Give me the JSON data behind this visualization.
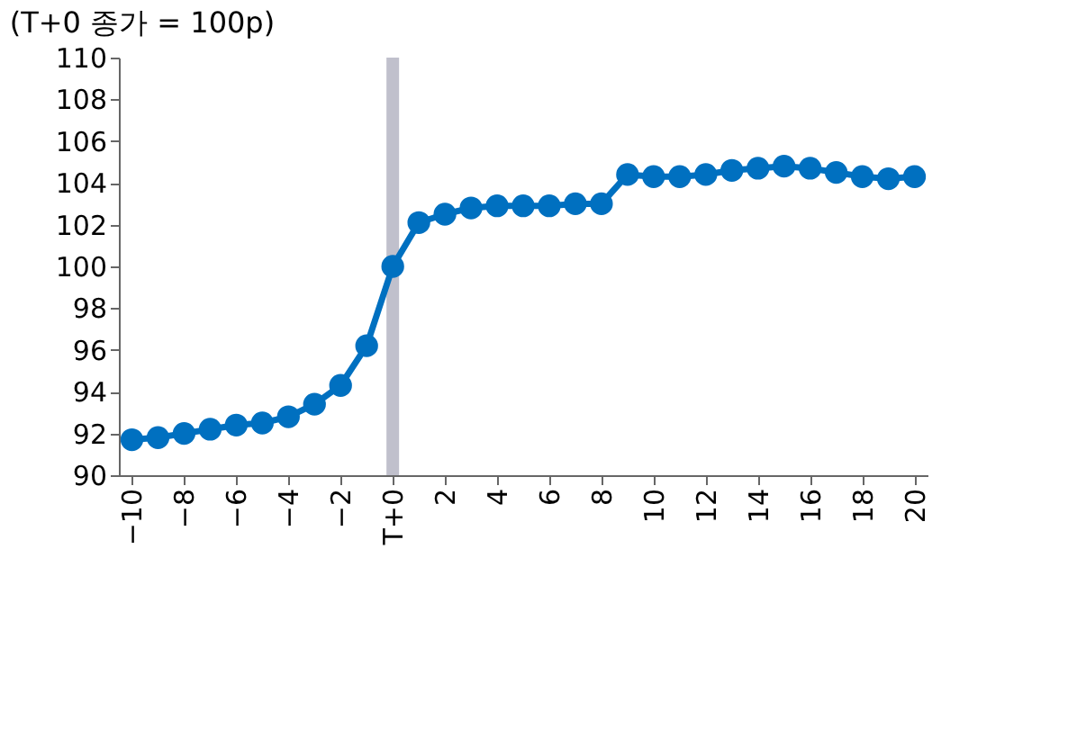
{
  "chart_data": {
    "type": "line",
    "ylabel": "(T+0 종가 = 100p)",
    "x": [
      -10,
      -9,
      -8,
      -7,
      -6,
      -5,
      -4,
      -3,
      -2,
      -1,
      0,
      1,
      2,
      3,
      4,
      5,
      6,
      7,
      8,
      9,
      10,
      11,
      12,
      13,
      14,
      15,
      16,
      17,
      18,
      19,
      20
    ],
    "series": [
      {
        "color": "#0070c0",
        "values": [
          91.7,
          91.8,
          92.0,
          92.2,
          92.4,
          92.5,
          92.8,
          93.4,
          94.3,
          96.2,
          100.0,
          102.1,
          102.5,
          102.8,
          102.9,
          102.9,
          102.9,
          103.0,
          103.0,
          104.4,
          104.3,
          104.3,
          104.4,
          104.6,
          104.7,
          104.8,
          104.7,
          104.5,
          104.3,
          104.2,
          104.3
        ]
      }
    ],
    "xlim": [
      -10.5,
      20.5
    ],
    "xticks": [
      -10,
      -8,
      -6,
      -4,
      -2,
      {
        "value": 0,
        "label": "T+0"
      },
      2,
      4,
      6,
      8,
      10,
      12,
      14,
      16,
      18,
      20
    ],
    "ylim": [
      90,
      110
    ],
    "yticks": [
      90,
      92,
      94,
      96,
      98,
      100,
      102,
      104,
      106,
      108,
      110
    ],
    "ref_lines": [
      {
        "axis": "x",
        "value": 0,
        "color": "#c0c0cc"
      }
    ],
    "marker": "circle",
    "line_style": "solid",
    "grid": false
  }
}
